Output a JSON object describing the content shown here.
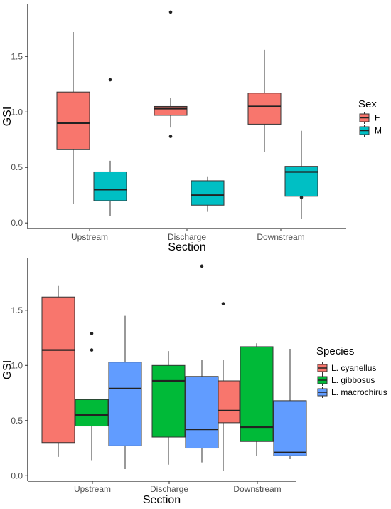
{
  "chart_data": [
    {
      "type": "boxplot",
      "xlabel": "Section",
      "ylabel": "GSI",
      "categories": [
        "Upstream",
        "Discharge",
        "Downstream"
      ],
      "yticks": [
        "0.0",
        "0.5",
        "1.0",
        "1.5"
      ],
      "ylim": [
        -0.05,
        1.97
      ],
      "legend": {
        "title": "Sex",
        "position": "right"
      },
      "grid": false,
      "series": [
        {
          "name": "F",
          "color": "#F8766D",
          "boxes": [
            {
              "category": "Upstream",
              "min": 0.17,
              "q1": 0.66,
              "median": 0.9,
              "q3": 1.18,
              "max": 1.72,
              "outliers": []
            },
            {
              "category": "Discharge",
              "min": 0.86,
              "q1": 0.97,
              "median": 1.03,
              "q3": 1.05,
              "max": 1.13,
              "outliers": [
                1.9,
                0.78
              ]
            },
            {
              "category": "Downstream",
              "min": 0.64,
              "q1": 0.89,
              "median": 1.05,
              "q3": 1.17,
              "max": 1.56,
              "outliers": []
            }
          ]
        },
        {
          "name": "M",
          "color": "#00BFC4",
          "boxes": [
            {
              "category": "Upstream",
              "min": 0.06,
              "q1": 0.2,
              "median": 0.3,
              "q3": 0.46,
              "max": 0.56,
              "outliers": [
                1.29
              ]
            },
            {
              "category": "Discharge",
              "min": 0.1,
              "q1": 0.16,
              "median": 0.25,
              "q3": 0.38,
              "max": 0.42,
              "outliers": []
            },
            {
              "category": "Downstream",
              "min": 0.04,
              "q1": 0.24,
              "median": 0.46,
              "q3": 0.51,
              "max": 0.83,
              "outliers": [
                0.23
              ]
            }
          ]
        }
      ]
    },
    {
      "type": "boxplot",
      "xlabel": "Section",
      "ylabel": "GSI",
      "categories": [
        "Upstream",
        "Discharge",
        "Downstream"
      ],
      "yticks": [
        "0.0",
        "0.5",
        "1.0",
        "1.5"
      ],
      "ylim": [
        -0.05,
        1.97
      ],
      "legend": {
        "title": "Species",
        "position": "right"
      },
      "grid": false,
      "series": [
        {
          "name": "L. cyanellus",
          "color": "#F8766D",
          "boxes": [
            {
              "category": "Upstream",
              "min": 0.17,
              "q1": 0.3,
              "median": 1.14,
              "q3": 1.62,
              "max": 1.72,
              "outliers": []
            },
            {
              "category": "Discharge",
              "min": null,
              "q1": null,
              "median": null,
              "q3": null,
              "max": null,
              "outliers": []
            },
            {
              "category": "Downstream",
              "min": 0.04,
              "q1": 0.48,
              "median": 0.59,
              "q3": 0.86,
              "max": 1.05,
              "outliers": [
                1.56
              ]
            }
          ]
        },
        {
          "name": "L. gibbosus",
          "color": "#00BA38",
          "boxes": [
            {
              "category": "Upstream",
              "min": 0.14,
              "q1": 0.45,
              "median": 0.55,
              "q3": 0.69,
              "max": 0.69,
              "outliers": [
                1.29,
                1.14
              ]
            },
            {
              "category": "Discharge",
              "min": 0.1,
              "q1": 0.35,
              "median": 0.86,
              "q3": 1.0,
              "max": 1.13,
              "outliers": []
            },
            {
              "category": "Downstream",
              "min": 0.18,
              "q1": 0.31,
              "median": 0.44,
              "q3": 1.17,
              "max": 1.2,
              "outliers": []
            }
          ]
        },
        {
          "name": "L. macrochirus",
          "color": "#619CFF",
          "boxes": [
            {
              "category": "Upstream",
              "min": 0.06,
              "q1": 0.27,
              "median": 0.79,
              "q3": 1.03,
              "max": 1.45,
              "outliers": []
            },
            {
              "category": "Discharge",
              "min": 0.12,
              "q1": 0.25,
              "median": 0.42,
              "q3": 0.9,
              "max": 1.05,
              "outliers": [
                1.9
              ]
            },
            {
              "category": "Downstream",
              "min": 0.15,
              "q1": 0.18,
              "median": 0.21,
              "q3": 0.68,
              "max": 1.15,
              "outliers": []
            }
          ]
        }
      ]
    }
  ]
}
